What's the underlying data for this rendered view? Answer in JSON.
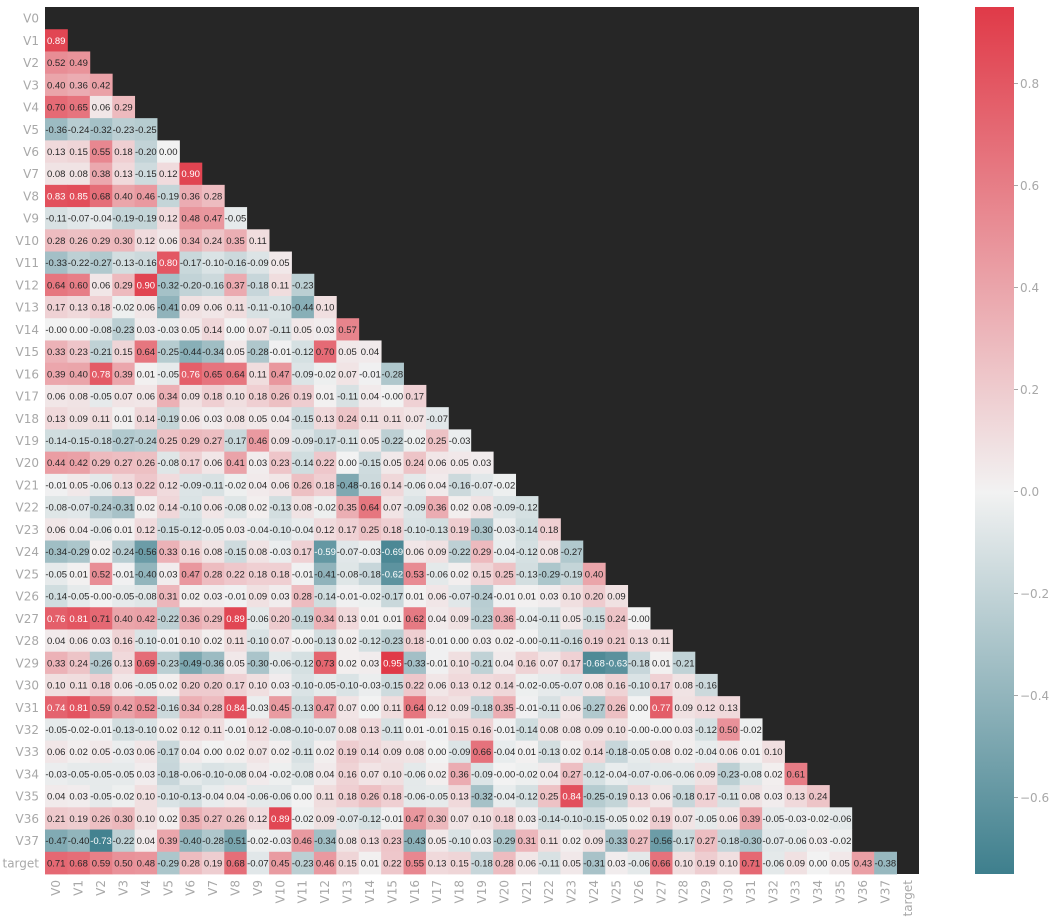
{
  "chart_data": {
    "type": "heatmap",
    "title": "",
    "xlabel": "",
    "ylabel": "",
    "mask": "upper-triangle",
    "cmap": "diverging teal-white-red",
    "colors": {
      "negative": "#3e7f8d",
      "neutral": "#f2f2f2",
      "positive": "#e03a48",
      "mask": "#262626"
    },
    "color_range": [
      -0.75,
      0.95
    ],
    "colorbar_ticks": [
      "0.8",
      "0.6",
      "0.4",
      "0.2",
      "0.0",
      "−0.2",
      "−0.4",
      "−0.6"
    ],
    "colorbar_tick_values": [
      0.8,
      0.6,
      0.4,
      0.2,
      0.0,
      -0.2,
      -0.4,
      -0.6
    ],
    "labels": [
      "V0",
      "V1",
      "V2",
      "V3",
      "V4",
      "V5",
      "V6",
      "V7",
      "V8",
      "V9",
      "V10",
      "V11",
      "V12",
      "V13",
      "V14",
      "V15",
      "V16",
      "V17",
      "V18",
      "V19",
      "V20",
      "V21",
      "V22",
      "V23",
      "V24",
      "V25",
      "V26",
      "V27",
      "V28",
      "V29",
      "V30",
      "V31",
      "V32",
      "V33",
      "V34",
      "V35",
      "V36",
      "V37",
      "target"
    ],
    "rows": [
      "",
      "0.89",
      "0.52 0.49",
      "0.40 0.36 0.42",
      "0.70 0.65 0.06 0.29",
      "-0.36 -0.24 -0.32 -0.23 -0.25",
      "0.13 0.15 0.55 0.18 -0.20 0.00",
      "0.08 0.08 0.38 0.13 -0.15 0.12 0.90",
      "0.83 0.85 0.68 0.40 0.46 -0.19 0.36 0.28",
      "-0.11 -0.07 -0.04 -0.19 -0.19 0.12 0.48 0.47 -0.05",
      "0.28 0.26 0.29 0.30 0.12 0.06 0.34 0.24 0.35 0.11",
      "-0.33 -0.22 -0.27 -0.13 -0.16 0.80 -0.17 -0.10 -0.16 -0.09 0.05",
      "0.64 0.60 0.06 0.29 0.90 -0.32 -0.20 -0.16 0.37 -0.18 0.11 -0.23",
      "0.17 0.13 0.18 -0.02 0.06 -0.41 0.09 0.06 0.11 -0.11 -0.10 -0.44 0.10",
      "-0.00 0.00 -0.08 -0.23 0.03 -0.03 0.05 0.14 0.00 0.07 -0.11 0.05 0.03 0.57",
      "0.33 0.23 -0.21 0.15 0.64 -0.25 -0.44 -0.34 0.05 -0.28 -0.01 -0.12 0.70 0.05 0.04",
      "0.39 0.40 0.78 0.39 0.01 -0.05 0.76 0.65 0.64 0.11 0.47 -0.09 -0.02 0.07 -0.01 -0.28",
      "0.06 0.08 -0.05 0.07 0.06 0.34 0.09 0.18 0.10 0.18 0.26 0.19 0.01 -0.11 0.04 -0.00 0.17",
      "0.13 0.09 0.11 0.01 0.14 -0.19 0.06 0.03 0.08 0.05 0.04 -0.15 0.13 0.24 0.11 0.11 0.07 -0.07",
      "-0.14 -0.15 -0.18 -0.27 -0.24 0.25 0.29 0.27 -0.17 0.46 0.09 -0.09 -0.17 -0.11 0.05 -0.22 -0.02 0.25 -0.03",
      "0.44 0.42 0.29 0.27 0.26 -0.08 0.17 0.06 0.41 0.03 0.23 -0.14 0.22 0.00 -0.15 0.05 0.24 0.06 0.05 0.03",
      "-0.01 0.05 -0.06 0.13 0.22 0.12 -0.09 -0.11 -0.02 0.04 0.06 0.26 0.18 -0.48 -0.16 0.14 -0.06 0.04 -0.16 -0.07 -0.02",
      "-0.08 -0.07 -0.24 -0.31 0.02 0.14 -0.10 0.06 -0.08 0.02 -0.13 0.08 -0.02 0.35 0.64 0.07 -0.09 0.36 0.02 0.08 -0.09 -0.12",
      "0.06 0.04 -0.06 0.01 0.12 -0.15 -0.12 -0.05 0.03 -0.04 -0.10 -0.04 0.12 0.17 0.25 0.18 -0.10 -0.13 0.19 -0.30 -0.03 -0.14 0.18",
      "-0.34 -0.29 0.02 -0.24 -0.56 0.33 0.16 0.08 -0.15 0.08 -0.03 0.17 -0.59 -0.07 -0.03 -0.69 0.06 0.09 -0.22 0.29 -0.04 -0.12 0.08 -0.27",
      "-0.05 0.01 0.52 -0.01 -0.40 0.03 0.47 0.28 0.22 0.18 0.18 -0.01 -0.41 -0.08 -0.18 -0.62 0.53 -0.06 0.02 0.15 0.25 -0.13 -0.29 -0.19 0.40",
      "-0.14 -0.05 -0.00 -0.05 -0.08 0.31 0.02 0.03 -0.01 0.09 0.03 0.28 -0.14 -0.01 -0.02 -0.17 0.01 0.06 -0.07 -0.24 -0.01 0.01 0.03 0.10 0.20 0.09",
      "0.76 0.81 0.71 0.40 0.42 -0.22 0.36 0.29 0.89 -0.06 0.20 -0.19 0.34 0.13 0.01 0.01 0.62 0.04 0.09 -0.23 0.36 -0.04 -0.11 0.05 -0.15 0.24 -0.00",
      "0.04 0.06 0.03 0.16 -0.10 -0.01 0.10 0.02 0.11 -0.10 0.07 -0.00 -0.13 0.02 -0.12 -0.23 0.18 -0.01 0.00 0.03 0.02 -0.00 -0.11 -0.16 0.19 0.21 0.13 0.11",
      "0.33 0.24 -0.26 0.13 0.69 -0.23 -0.49 -0.36 0.05 -0.30 -0.06 -0.12 0.73 0.02 0.03 0.95 -0.33 -0.01 0.10 -0.21 0.04 0.16 0.07 0.17 -0.68 -0.63 -0.18 0.01 -0.21",
      "0.10 0.11 0.18 0.06 -0.05 0.02 0.20 0.20 0.17 0.10 0.03 -0.10 -0.05 -0.10 -0.03 -0.15 0.22 0.06 0.13 0.12 0.14 -0.02 -0.05 -0.07 0.08 0.16 -0.10 0.17 0.08 -0.16",
      "0.74 0.81 0.59 0.42 0.52 -0.16 0.34 0.28 0.84 -0.03 0.45 -0.13 0.47 0.07 0.00 0.11 0.64 0.12 0.09 -0.18 0.35 -0.01 -0.11 0.06 -0.27 0.26 0.00 0.77 0.09 0.12 0.13",
      "-0.05 -0.02 -0.01 -0.13 -0.10 0.02 0.12 0.11 -0.01 0.12 -0.08 -0.10 -0.07 0.08 0.13 -0.11 0.01 -0.01 0.15 0.16 -0.01 -0.14 0.08 0.08 0.09 0.10 -0.00 -0.00 0.03 -0.12 0.50 -0.02",
      "0.06 0.02 0.05 -0.03 0.06 -0.17 0.04 0.00 0.02 0.07 0.02 -0.11 0.02 0.19 0.14 0.09 0.08 0.00 -0.09 0.66 -0.04 0.01 -0.13 0.02 0.14 -0.18 -0.05 0.08 0.02 -0.04 0.06 0.01 0.10",
      "-0.03 -0.05 -0.05 -0.05 0.03 -0.18 -0.06 -0.10 -0.08 0.04 -0.02 -0.08 0.04 0.16 0.07 0.10 -0.06 0.02 0.36 -0.09 -0.00 -0.02 0.04 0.27 -0.12 -0.04 -0.07 -0.06 -0.06 0.09 -0.23 -0.08 0.02 0.61",
      "0.04 0.03 -0.05 -0.02 0.10 -0.10 -0.13 -0.04 0.04 -0.06 -0.06 0.00 0.11 0.18 0.26 0.18 -0.06 -0.05 0.13 -0.32 -0.04 -0.12 0.25 0.84 -0.25 -0.19 0.13 0.06 -0.18 0.17 -0.11 0.08 0.03 0.13 0.24",
      "0.21 0.19 0.26 0.30 0.10 0.02 0.35 0.27 0.26 0.12 0.89 -0.02 0.09 -0.07 -0.12 -0.01 0.47 0.30 0.07 0.10 0.18 0.03 -0.14 -0.10 -0.15 -0.05 0.02 0.19 0.07 -0.05 0.06 0.39 -0.05 -0.03 -0.02 -0.06",
      "-0.47 -0.40 -0.73 -0.22 0.04 0.39 -0.40 -0.28 -0.51 -0.02 -0.03 0.46 -0.34 0.08 0.13 0.23 -0.43 0.05 -0.10 0.03 -0.29 0.31 0.11 0.02 0.09 -0.33 0.27 -0.56 -0.17 0.27 -0.18 -0.30 -0.07 -0.06 0.03 -0.02",
      "0.71 0.68 0.59 0.50 0.48 -0.29 0.28 0.19 0.68 -0.07 0.45 -0.23 0.46 0.15 0.01 0.22 0.55 0.13 0.15 -0.18 0.28 0.06 -0.11 0.05 -0.31 0.03 -0.06 0.66 0.10 0.19 0.10 0.71 -0.06 0.09 0.00 0.05 0.43 -0.38"
    ]
  }
}
